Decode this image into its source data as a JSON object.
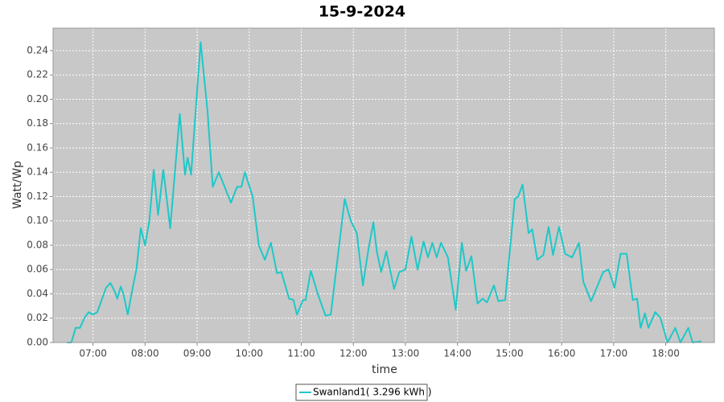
{
  "chart_data": {
    "type": "line",
    "title": "15-9-2024",
    "x_label": "time",
    "y_label": "Watt/Wp",
    "x": [
      "06:30",
      "06:35",
      "06:40",
      "06:45",
      "06:50",
      "06:55",
      "07:00",
      "07:05",
      "07:10",
      "07:15",
      "07:20",
      "07:25",
      "07:28",
      "07:32",
      "07:35",
      "07:40",
      "07:46",
      "07:50",
      "07:55",
      "08:00",
      "08:05",
      "08:10",
      "08:15",
      "08:21",
      "08:29",
      "08:40",
      "08:46",
      "08:49",
      "08:53",
      "09:04",
      "09:12",
      "09:18",
      "09:25",
      "09:39",
      "09:46",
      "09:51",
      "09:55",
      "10:04",
      "10:11",
      "10:18",
      "10:25",
      "10:32",
      "10:37",
      "10:46",
      "10:51",
      "10:55",
      "11:02",
      "11:05",
      "11:11",
      "11:19",
      "11:28",
      "11:34",
      "11:42",
      "11:50",
      "11:57",
      "12:04",
      "12:11",
      "12:17",
      "12:23",
      "12:27",
      "12:32",
      "12:38",
      "12:47",
      "12:53",
      "13:00",
      "13:07",
      "13:14",
      "13:21",
      "13:26",
      "13:31",
      "13:36",
      "13:41",
      "13:49",
      "13:58",
      "14:05",
      "14:10",
      "14:16",
      "14:23",
      "14:29",
      "14:34",
      "14:42",
      "14:47",
      "14:55",
      "15:06",
      "15:10",
      "15:15",
      "15:22",
      "15:26",
      "15:32",
      "15:39",
      "15:45",
      "15:50",
      "15:57",
      "16:04",
      "16:12",
      "16:20",
      "16:25",
      "16:34",
      "16:48",
      "16:54",
      "17:01",
      "17:08",
      "17:15",
      "17:22",
      "17:27",
      "17:31",
      "17:36",
      "17:40",
      "17:48",
      "17:54",
      "18:02",
      "18:11",
      "18:17",
      "18:26",
      "18:31",
      "18:41"
    ],
    "series": [
      {
        "name": "Swanland1( 3.296 kWh )",
        "color": "#1ec8c8",
        "values": [
          0,
          0,
          0.012,
          0.012,
          0.02,
          0.025,
          0.023,
          0.025,
          0.035,
          0.045,
          0.049,
          0.042,
          0.036,
          0.046,
          0.04,
          0.023,
          0.046,
          0.06,
          0.094,
          0.08,
          0.1,
          0.142,
          0.105,
          0.142,
          0.094,
          0.188,
          0.138,
          0.152,
          0.138,
          0.247,
          0.19,
          0.128,
          0.14,
          0.115,
          0.128,
          0.128,
          0.14,
          0.12,
          0.08,
          0.068,
          0.082,
          0.057,
          0.058,
          0.036,
          0.035,
          0.023,
          0.035,
          0.035,
          0.059,
          0.04,
          0.022,
          0.023,
          0.07,
          0.118,
          0.1,
          0.09,
          0.047,
          0.075,
          0.099,
          0.075,
          0.058,
          0.075,
          0.044,
          0.058,
          0.06,
          0.087,
          0.06,
          0.083,
          0.07,
          0.082,
          0.07,
          0.082,
          0.07,
          0.027,
          0.082,
          0.059,
          0.071,
          0.032,
          0.036,
          0.033,
          0.047,
          0.034,
          0.035,
          0.118,
          0.12,
          0.13,
          0.09,
          0.093,
          0.068,
          0.072,
          0.095,
          0.072,
          0.095,
          0.073,
          0.07,
          0.082,
          0.05,
          0.034,
          0.058,
          0.06,
          0.045,
          0.073,
          0.073,
          0.035,
          0.036,
          0.012,
          0.024,
          0.012,
          0.025,
          0.02,
          0,
          0.012,
          0,
          0.012,
          0,
          0.001
        ]
      }
    ],
    "xlim": [
      "06:14",
      "18:56"
    ],
    "xticks": [
      "07:00",
      "08:00",
      "09:00",
      "10:00",
      "11:00",
      "12:00",
      "13:00",
      "14:00",
      "15:00",
      "16:00",
      "17:00",
      "18:00"
    ],
    "ylim": [
      0,
      0.2585
    ],
    "yticks": [
      {
        "value": 0,
        "label": "0.00"
      },
      0.02,
      0.04,
      0.06,
      0.08,
      {
        "value": 0.1,
        "label": "0.10"
      },
      0.12,
      0.14,
      0.16,
      0.18,
      {
        "value": 0.2,
        "label": "0.20"
      },
      0.22,
      0.24
    ],
    "grid": true,
    "legend": "bottom"
  }
}
